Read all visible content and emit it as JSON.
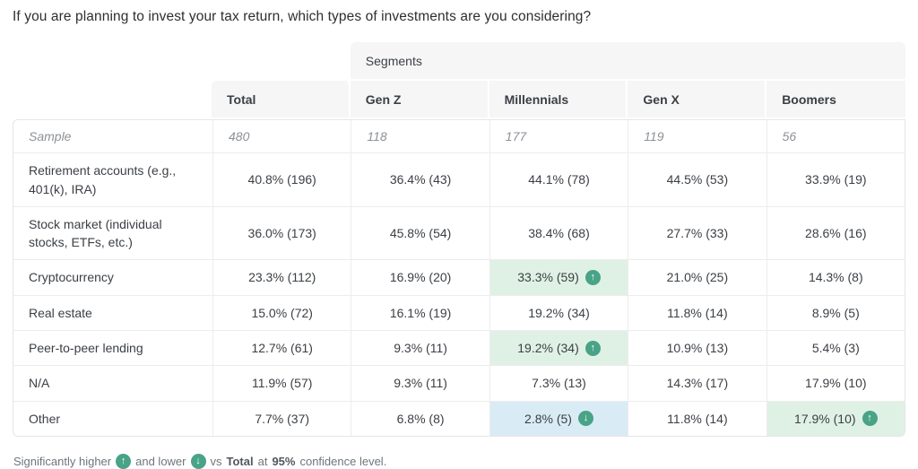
{
  "title": "If you are planning to invest your tax return, which types of investments are you considering?",
  "segments_label": "Segments",
  "icons": {
    "significant_higher": "↑",
    "significant_lower": "↓"
  },
  "colors": {
    "higher_bg": "#dff1e4",
    "lower_bg": "#d9ecf6",
    "badge": "#48a387",
    "header_bg": "#f6f6f7"
  },
  "chart_data": {
    "type": "table",
    "title": "If you are planning to invest your tax return, which types of investments are you considering?",
    "columns": [
      "Total",
      "Gen Z",
      "Millennials",
      "Gen X",
      "Boomers"
    ],
    "sample_row": {
      "label": "Sample",
      "values": [
        "480",
        "118",
        "177",
        "119",
        "56"
      ]
    },
    "rows": [
      {
        "label": "Retirement accounts (e.g., 401(k), IRA)",
        "cells": [
          {
            "text": "40.8% (196)"
          },
          {
            "text": "36.4% (43)"
          },
          {
            "text": "44.1% (78)"
          },
          {
            "text": "44.5% (53)"
          },
          {
            "text": "33.9% (19)"
          }
        ]
      },
      {
        "label": "Stock market (individual stocks, ETFs, etc.)",
        "cells": [
          {
            "text": "36.0% (173)"
          },
          {
            "text": "45.8% (54)"
          },
          {
            "text": "38.4% (68)"
          },
          {
            "text": "27.7% (33)"
          },
          {
            "text": "28.6% (16)"
          }
        ]
      },
      {
        "label": "Cryptocurrency",
        "cells": [
          {
            "text": "23.3% (112)"
          },
          {
            "text": "16.9% (20)"
          },
          {
            "text": "33.3% (59)",
            "significance": "higher"
          },
          {
            "text": "21.0% (25)"
          },
          {
            "text": "14.3% (8)"
          }
        ]
      },
      {
        "label": "Real estate",
        "cells": [
          {
            "text": "15.0% (72)"
          },
          {
            "text": "16.1% (19)"
          },
          {
            "text": "19.2% (34)"
          },
          {
            "text": "11.8% (14)"
          },
          {
            "text": "8.9% (5)"
          }
        ]
      },
      {
        "label": "Peer-to-peer lending",
        "cells": [
          {
            "text": "12.7% (61)"
          },
          {
            "text": "9.3% (11)"
          },
          {
            "text": "19.2% (34)",
            "significance": "higher"
          },
          {
            "text": "10.9% (13)"
          },
          {
            "text": "5.4% (3)"
          }
        ]
      },
      {
        "label": "N/A",
        "cells": [
          {
            "text": "11.9% (57)"
          },
          {
            "text": "9.3% (11)"
          },
          {
            "text": "7.3% (13)"
          },
          {
            "text": "14.3% (17)"
          },
          {
            "text": "17.9% (10)"
          }
        ]
      },
      {
        "label": "Other",
        "cells": [
          {
            "text": "7.7% (37)"
          },
          {
            "text": "6.8% (8)"
          },
          {
            "text": "2.8% (5)",
            "significance": "lower"
          },
          {
            "text": "11.8% (14)"
          },
          {
            "text": "17.9% (10)",
            "significance": "higher"
          }
        ]
      }
    ],
    "legend": "Significantly higher and lower vs Total at 95% confidence level."
  },
  "footer": {
    "part1": "Significantly higher",
    "part2": "and lower",
    "part3": "vs",
    "total_bold": "Total",
    "part4": "at",
    "confidence_bold": "95%",
    "part5": "confidence level."
  }
}
